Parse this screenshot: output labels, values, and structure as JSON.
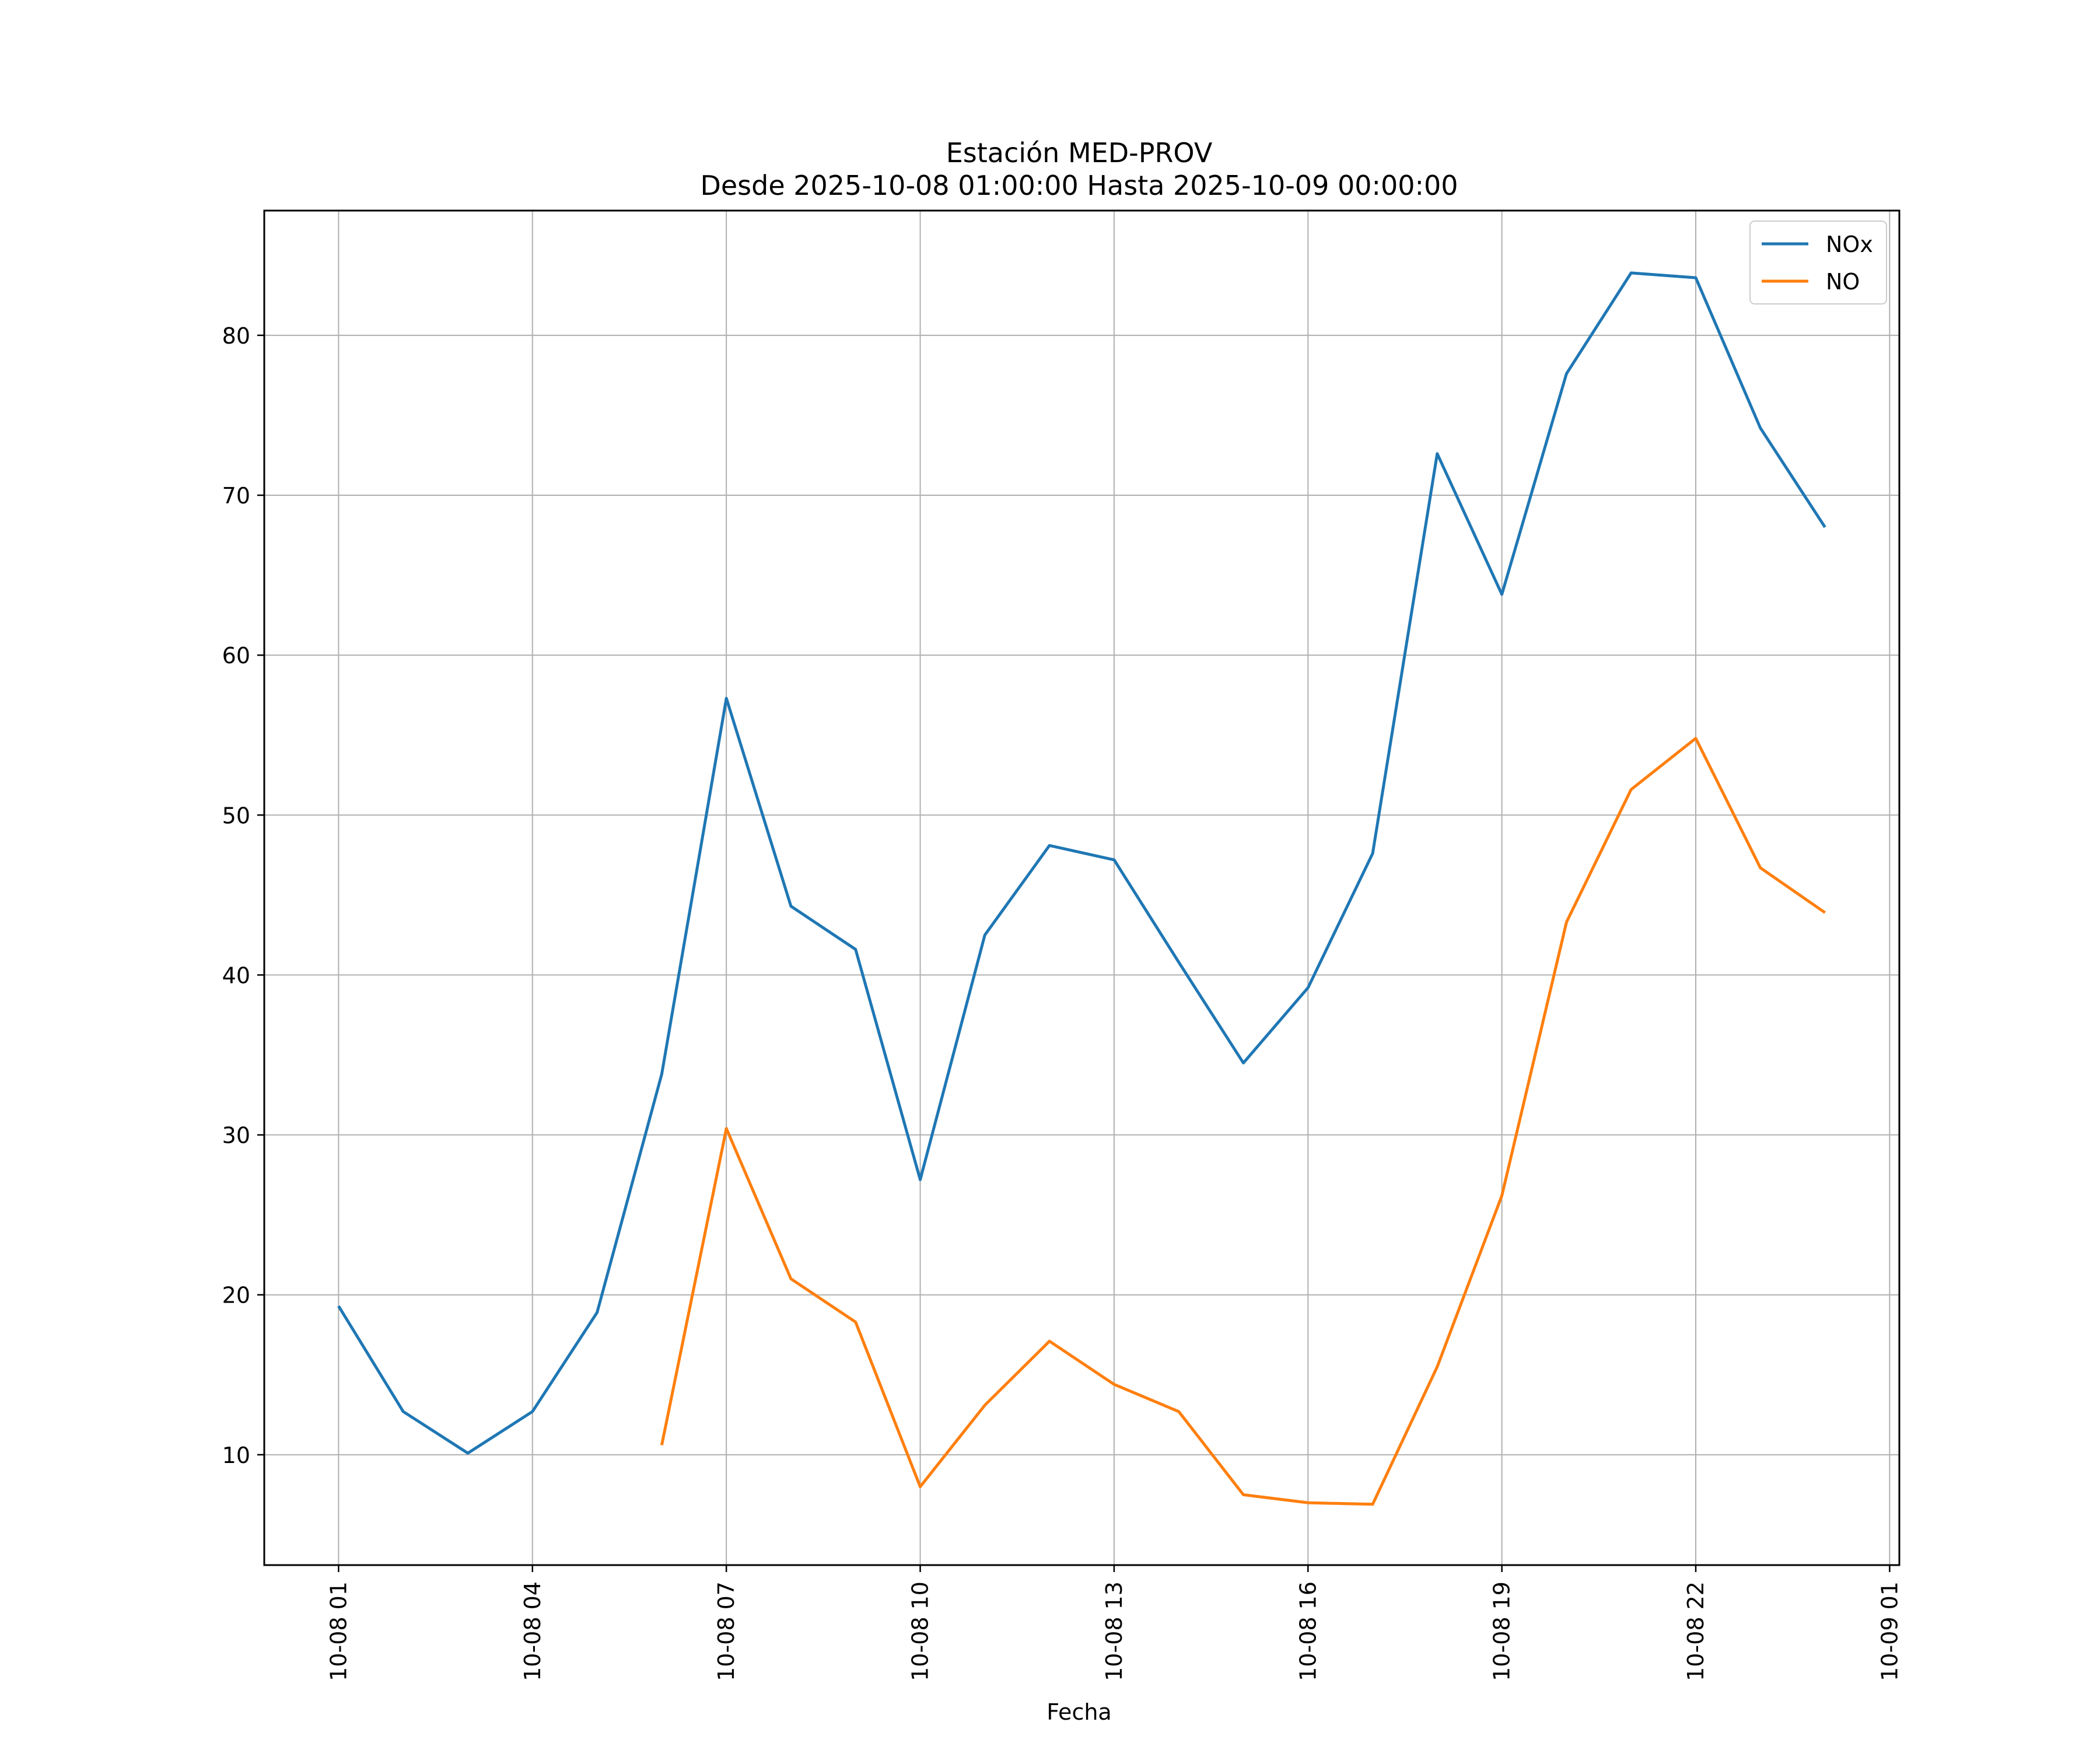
{
  "chart_data": {
    "type": "line",
    "title": "Estación MED-PROV",
    "subtitle": "Desde 2025-10-08 01:00:00 Hasta 2025-10-09 00:00:00",
    "xlabel": "Fecha",
    "ylabel": "",
    "x": [
      "10-08 01",
      "10-08 02",
      "10-08 03",
      "10-08 04",
      "10-08 05",
      "10-08 06",
      "10-08 07",
      "10-08 08",
      "10-08 09",
      "10-08 10",
      "10-08 11",
      "10-08 12",
      "10-08 13",
      "10-08 14",
      "10-08 15",
      "10-08 16",
      "10-08 17",
      "10-08 18",
      "10-08 19",
      "10-08 20",
      "10-08 21",
      "10-08 22",
      "10-08 23",
      "10-09 00"
    ],
    "x_ticks": [
      "10-08 01",
      "10-08 04",
      "10-08 07",
      "10-08 10",
      "10-08 13",
      "10-08 16",
      "10-08 19",
      "10-08 22",
      "10-09 01"
    ],
    "x_tick_hours": [
      0,
      3,
      6,
      9,
      12,
      15,
      18,
      21,
      24
    ],
    "xlim_hours": [
      -1.15,
      24.15
    ],
    "y_ticks": [
      10,
      20,
      30,
      40,
      50,
      60,
      70,
      80
    ],
    "ylim": [
      3.1,
      87.8
    ],
    "grid": true,
    "legend_position": "top-right",
    "series": [
      {
        "name": "NOx",
        "color": "#1f77b4",
        "values": [
          19.3,
          12.7,
          10.1,
          12.7,
          18.9,
          33.8,
          57.3,
          44.3,
          41.6,
          27.2,
          42.5,
          48.1,
          47.2,
          40.8,
          34.5,
          39.2,
          47.6,
          72.6,
          63.8,
          77.6,
          83.9,
          83.6,
          74.2,
          68.0
        ]
      },
      {
        "name": "NO",
        "color": "#ff7f0e",
        "values": [
          null,
          null,
          null,
          null,
          null,
          10.6,
          30.4,
          21.0,
          18.3,
          8.0,
          13.1,
          17.1,
          14.4,
          12.7,
          7.5,
          7.0,
          6.9,
          15.5,
          26.2,
          43.3,
          51.6,
          54.8,
          46.7,
          43.9
        ]
      }
    ]
  }
}
